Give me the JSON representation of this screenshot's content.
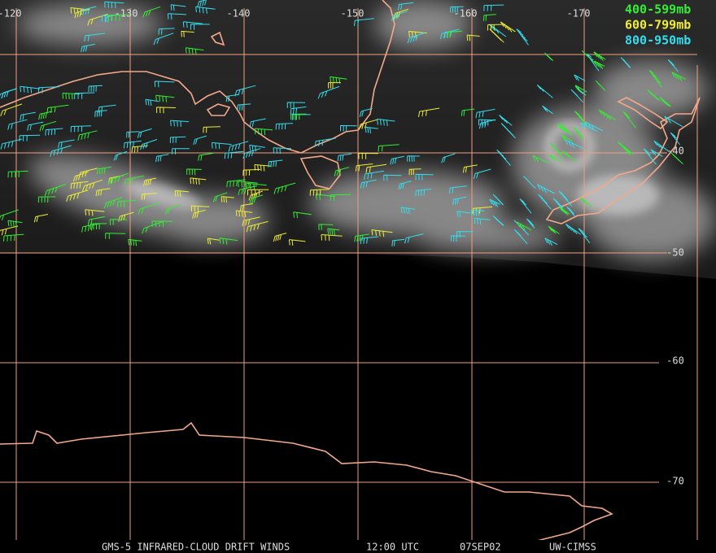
{
  "map": {
    "longitude_labels": [
      "-120",
      "-130",
      "-140",
      "-150",
      "-160",
      "-170"
    ],
    "latitude_labels": [
      "-40",
      "-50",
      "-60",
      "-70"
    ],
    "legend": [
      {
        "label": "400-599mb",
        "color": "#33ee33"
      },
      {
        "label": "600-799mb",
        "color": "#eeee33"
      },
      {
        "label": "800-950mb",
        "color": "#33ddee"
      }
    ],
    "footer": {
      "source": "GMS-5 INFRARED-CLOUD DRIFT WINDS",
      "time": "12:00 UTC",
      "date": "07SEP02",
      "producer": "UW-CIMSS"
    }
  }
}
